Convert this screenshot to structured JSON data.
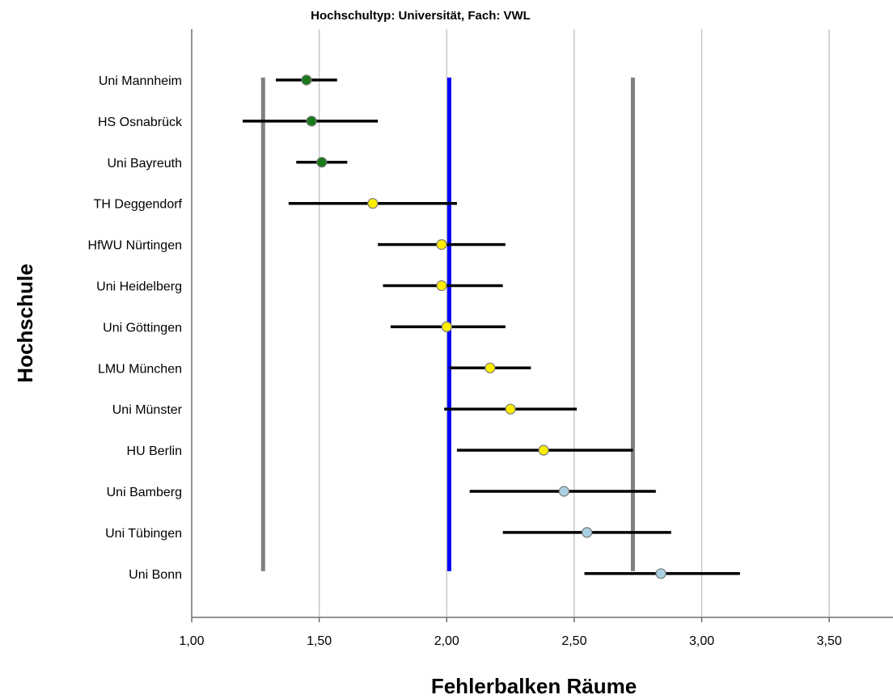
{
  "chart_data": {
    "type": "scatter",
    "title": "Hochschultyp: Universität, Fach: VWL",
    "xlabel": "Fehlerbalken Räume",
    "ylabel": "Hochschule",
    "xlim": [
      1.0,
      3.75
    ],
    "x_ticks": [
      "1,00",
      "1,50",
      "2,00",
      "2,50",
      "3,00",
      "3,50"
    ],
    "grid": "vertical",
    "categories": [
      "Uni Mannheim",
      "HS Osnabrück",
      "Uni Bayreuth",
      "TH Deggendorf",
      "HfWU Nürtingen",
      "Uni Heidelberg",
      "Uni Göttingen",
      "LMU München",
      "Uni Münster",
      "HU Berlin",
      "Uni Bamberg",
      "Uni Tübingen",
      "Uni Bonn"
    ],
    "points": [
      {
        "label": "Uni Mannheim",
        "mean": 1.45,
        "low": 1.33,
        "high": 1.57,
        "color": "#1a7a1a"
      },
      {
        "label": "HS Osnabrück",
        "mean": 1.47,
        "low": 1.2,
        "high": 1.73,
        "color": "#1a7a1a"
      },
      {
        "label": "Uni Bayreuth",
        "mean": 1.51,
        "low": 1.41,
        "high": 1.61,
        "color": "#1a7a1a"
      },
      {
        "label": "TH Deggendorf",
        "mean": 1.71,
        "low": 1.38,
        "high": 2.04,
        "color": "#ffee00"
      },
      {
        "label": "HfWU Nürtingen",
        "mean": 1.98,
        "low": 1.73,
        "high": 2.23,
        "color": "#ffee00"
      },
      {
        "label": "Uni Heidelberg",
        "mean": 1.98,
        "low": 1.75,
        "high": 2.22,
        "color": "#ffee00"
      },
      {
        "label": "Uni Göttingen",
        "mean": 2.0,
        "low": 1.78,
        "high": 2.23,
        "color": "#ffee00"
      },
      {
        "label": "LMU München",
        "mean": 2.17,
        "low": 2.01,
        "high": 2.33,
        "color": "#ffee00"
      },
      {
        "label": "Uni Münster",
        "mean": 2.25,
        "low": 1.99,
        "high": 2.51,
        "color": "#ffee00"
      },
      {
        "label": "HU Berlin",
        "mean": 2.38,
        "low": 2.04,
        "high": 2.73,
        "color": "#ffee00"
      },
      {
        "label": "Uni Bamberg",
        "mean": 2.46,
        "low": 2.09,
        "high": 2.82,
        "color": "#a9d0e0"
      },
      {
        "label": "Uni Tübingen",
        "mean": 2.55,
        "low": 2.22,
        "high": 2.88,
        "color": "#a9d0e0"
      },
      {
        "label": "Uni Bonn",
        "mean": 2.84,
        "low": 2.54,
        "high": 3.15,
        "color": "#a9d0e0"
      }
    ],
    "reference_lines": [
      {
        "x": 1.28,
        "color": "#808080"
      },
      {
        "x": 2.01,
        "color": "#0000ff"
      },
      {
        "x": 2.73,
        "color": "#808080"
      }
    ],
    "colors": {
      "gridline": "#c8c8c8",
      "axis": "#6e6e6e",
      "errorbar": "#000000"
    }
  }
}
